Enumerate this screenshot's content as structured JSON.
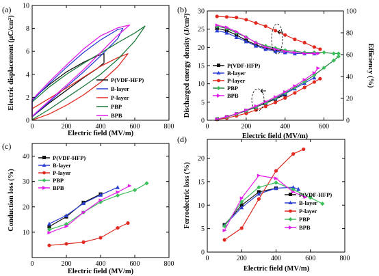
{
  "colors": {
    "P(VDF-HFP)": "#111111",
    "B-layer": "#2b3fd4",
    "P-layer": "#e02a1f",
    "PBP": "#1e7a3c",
    "BPB": "#e31ce8",
    "PBP_markers": "#3cbf5a"
  },
  "chart_data": [
    {
      "panel": "(a)",
      "type": "line",
      "xlabel": "Electric field (MV/m)",
      "ylabel": "Electric displacement (μC/cm²)",
      "xlim": [
        0,
        800
      ],
      "ylim": [
        0,
        10
      ],
      "xticks": [
        "0",
        "200",
        "400",
        "600",
        "800"
      ],
      "yticks": [
        "0",
        "2",
        "4",
        "6",
        "8",
        "10"
      ],
      "legend_position": "lower-right",
      "series": [
        {
          "name": "P(VDF-HFP)",
          "color": "#111111",
          "upper": [
            [
              0,
              1.8
            ],
            [
              100,
              3.1
            ],
            [
              200,
              4.2
            ],
            [
              300,
              5.05
            ],
            [
              380,
              5.6
            ],
            [
              420,
              5.8
            ]
          ],
          "lower": [
            [
              0,
              0.3
            ],
            [
              100,
              1.5
            ],
            [
              200,
              2.6
            ],
            [
              300,
              3.7
            ],
            [
              380,
              4.5
            ],
            [
              420,
              5.0
            ]
          ]
        },
        {
          "name": "B-layer",
          "color": "#2b3fd4",
          "upper": [
            [
              0,
              1.7
            ],
            [
              100,
              3.2
            ],
            [
              200,
              4.6
            ],
            [
              300,
              5.9
            ],
            [
              400,
              7.0
            ],
            [
              500,
              7.9
            ],
            [
              530,
              8.0
            ]
          ],
          "lower": [
            [
              0,
              0.3
            ],
            [
              100,
              1.6
            ],
            [
              200,
              2.9
            ],
            [
              300,
              4.2
            ],
            [
              400,
              5.6
            ],
            [
              500,
              7.1
            ],
            [
              530,
              8.0
            ]
          ]
        },
        {
          "name": "P-layer",
          "color": "#e02a1f",
          "upper": [
            [
              0,
              1.0
            ],
            [
              100,
              1.9
            ],
            [
              200,
              2.8
            ],
            [
              300,
              3.75
            ],
            [
              400,
              4.7
            ],
            [
              500,
              5.45
            ],
            [
              560,
              5.8
            ]
          ],
          "lower": [
            [
              0,
              0.0
            ],
            [
              100,
              0.55
            ],
            [
              200,
              1.3
            ],
            [
              300,
              2.2
            ],
            [
              400,
              3.3
            ],
            [
              500,
              4.65
            ],
            [
              560,
              5.8
            ]
          ]
        },
        {
          "name": "PBP",
          "color": "#1e7a3c",
          "upper": [
            [
              0,
              1.6
            ],
            [
              100,
              2.9
            ],
            [
              200,
              4.0
            ],
            [
              300,
              4.95
            ],
            [
              400,
              5.85
            ],
            [
              500,
              6.75
            ],
            [
              600,
              7.6
            ],
            [
              660,
              8.2
            ]
          ],
          "lower": [
            [
              0,
              0.05
            ],
            [
              100,
              0.95
            ],
            [
              200,
              1.95
            ],
            [
              300,
              2.95
            ],
            [
              400,
              4.0
            ],
            [
              500,
              5.3
            ],
            [
              600,
              6.9
            ],
            [
              660,
              8.2
            ]
          ]
        },
        {
          "name": "BPB",
          "color": "#e31ce8",
          "upper": [
            [
              0,
              1.8
            ],
            [
              100,
              3.35
            ],
            [
              200,
              4.8
            ],
            [
              300,
              6.2
            ],
            [
              400,
              7.35
            ],
            [
              500,
              8.05
            ],
            [
              570,
              8.3
            ]
          ],
          "lower": [
            [
              0,
              0.35
            ],
            [
              100,
              1.7
            ],
            [
              200,
              3.05
            ],
            [
              300,
              4.4
            ],
            [
              400,
              5.9
            ],
            [
              500,
              7.4
            ],
            [
              570,
              8.3
            ]
          ]
        }
      ]
    },
    {
      "panel": "(b)",
      "type": "line",
      "xlabel": "Electric field (MV/m)",
      "ylabel": "Discharged energy density (J/cm³)",
      "y2label": "Efficiency (%)",
      "xlim": [
        0,
        700
      ],
      "ylim": [
        0,
        30
      ],
      "y2lim": [
        0,
        100
      ],
      "xticks": [
        "0",
        "200",
        "400",
        "600"
      ],
      "yticks": [
        "0",
        "5",
        "10",
        "15",
        "20",
        "25",
        "30"
      ],
      "y2ticks": [
        "0",
        "20",
        "40",
        "60",
        "80",
        "100"
      ],
      "legend_position": "center-left",
      "series": [
        {
          "name": "P(VDF-HFP)",
          "color": "#111111",
          "energy": [
            [
              50,
              0.3
            ],
            [
              100,
              0.9
            ],
            [
              150,
              1.7
            ],
            [
              200,
              2.6
            ],
            [
              250,
              3.6
            ],
            [
              300,
              4.7
            ],
            [
              350,
              5.8
            ],
            [
              400,
              7.0
            ]
          ],
          "efficiency": [
            [
              50,
              84
            ],
            [
              100,
              82
            ],
            [
              150,
              78
            ],
            [
              200,
              73
            ],
            [
              250,
              69
            ],
            [
              300,
              66
            ],
            [
              350,
              64
            ],
            [
              400,
              63
            ]
          ]
        },
        {
          "name": "B-layer",
          "color": "#2b3fd4",
          "energy": [
            [
              50,
              0.3
            ],
            [
              100,
              0.9
            ],
            [
              150,
              1.7
            ],
            [
              200,
              2.6
            ],
            [
              250,
              3.6
            ],
            [
              300,
              4.8
            ],
            [
              350,
              6.0
            ],
            [
              400,
              7.3
            ],
            [
              450,
              8.7
            ],
            [
              500,
              10.2
            ],
            [
              550,
              11.7
            ]
          ],
          "efficiency": [
            [
              50,
              82
            ],
            [
              100,
              80
            ],
            [
              150,
              76
            ],
            [
              200,
              72
            ],
            [
              250,
              68
            ],
            [
              300,
              65
            ],
            [
              350,
              63
            ],
            [
              400,
              62
            ],
            [
              450,
              61
            ],
            [
              500,
              61
            ],
            [
              550,
              61
            ]
          ]
        },
        {
          "name": "P-layer",
          "color": "#e02a1f",
          "energy": [
            [
              50,
              0.2
            ],
            [
              100,
              0.6
            ],
            [
              150,
              1.2
            ],
            [
              200,
              1.9
            ],
            [
              250,
              2.8
            ],
            [
              300,
              3.8
            ],
            [
              350,
              4.9
            ],
            [
              400,
              6.1
            ],
            [
              450,
              7.5
            ],
            [
              500,
              9.0
            ],
            [
              550,
              10.5
            ],
            [
              580,
              11.4
            ]
          ],
          "efficiency": [
            [
              50,
              95
            ],
            [
              100,
              94.5
            ],
            [
              150,
              94
            ],
            [
              200,
              92
            ],
            [
              250,
              89
            ],
            [
              300,
              86
            ],
            [
              350,
              82
            ],
            [
              400,
              78
            ],
            [
              450,
              74
            ],
            [
              500,
              71
            ],
            [
              550,
              67
            ],
            [
              580,
              65
            ]
          ]
        },
        {
          "name": "PBP",
          "color": "#1e7a3c",
          "energy": [
            [
              50,
              0.3
            ],
            [
              100,
              0.9
            ],
            [
              150,
              1.7
            ],
            [
              200,
              2.6
            ],
            [
              250,
              3.6
            ],
            [
              300,
              4.8
            ],
            [
              350,
              6.1
            ],
            [
              400,
              7.5
            ],
            [
              450,
              9.0
            ],
            [
              500,
              10.6
            ],
            [
              550,
              12.4
            ],
            [
              600,
              14.4
            ],
            [
              650,
              16.4
            ],
            [
              675,
              17.5
            ]
          ],
          "efficiency": [
            [
              50,
              86
            ],
            [
              100,
              84
            ],
            [
              150,
              80
            ],
            [
              200,
              76
            ],
            [
              250,
              71
            ],
            [
              300,
              68
            ],
            [
              350,
              66
            ],
            [
              400,
              64
            ],
            [
              450,
              63
            ],
            [
              500,
              62
            ],
            [
              550,
              62
            ],
            [
              600,
              62
            ],
            [
              650,
              61
            ],
            [
              675,
              61
            ]
          ]
        },
        {
          "name": "BPB",
          "color": "#e31ce8",
          "energy": [
            [
              50,
              0.3
            ],
            [
              100,
              1.0
            ],
            [
              150,
              1.8
            ],
            [
              200,
              2.8
            ],
            [
              250,
              3.9
            ],
            [
              300,
              5.1
            ],
            [
              350,
              6.4
            ],
            [
              400,
              7.8
            ],
            [
              450,
              9.4
            ],
            [
              500,
              11.1
            ],
            [
              550,
              13.0
            ],
            [
              570,
              14.3
            ]
          ],
          "efficiency": [
            [
              50,
              87
            ],
            [
              100,
              85
            ],
            [
              150,
              81
            ],
            [
              200,
              76
            ],
            [
              250,
              71
            ],
            [
              300,
              67
            ],
            [
              350,
              65
            ],
            [
              400,
              63
            ],
            [
              450,
              62
            ],
            [
              500,
              61
            ],
            [
              550,
              61
            ],
            [
              570,
              61
            ]
          ]
        }
      ]
    },
    {
      "panel": "(c)",
      "type": "line",
      "xlabel": "Electric field (MV/m)",
      "ylabel": "Conduction loss (%)",
      "xlim": [
        0,
        800
      ],
      "ylim": [
        0,
        45
      ],
      "xticks": [
        "0",
        "200",
        "400",
        "600",
        "800"
      ],
      "yticks": [
        "10",
        "20",
        "30",
        "40"
      ],
      "legend_position": "top-left",
      "series": [
        {
          "name": "P(VDF-HFP)",
          "color": "#111111",
          "x": [
            100,
            200,
            300,
            400
          ],
          "y": [
            12.2,
            16.1,
            21.7,
            25.0
          ]
        },
        {
          "name": "B-layer",
          "color": "#2b3fd4",
          "x": [
            100,
            200,
            300,
            400,
            500
          ],
          "y": [
            13.3,
            16.6,
            21.4,
            24.7,
            27.7
          ]
        },
        {
          "name": "P-layer",
          "color": "#e02a1f",
          "x": [
            100,
            200,
            300,
            400,
            500,
            560
          ],
          "y": [
            4.8,
            5.4,
            6.1,
            7.8,
            11.7,
            13.6
          ]
        },
        {
          "name": "PBP",
          "color": "#3cbf5a",
          "x": [
            100,
            200,
            300,
            400,
            500,
            600,
            670
          ],
          "y": [
            11.0,
            13.2,
            17.8,
            21.9,
            24.5,
            26.6,
            29.3
          ]
        },
        {
          "name": "BPB",
          "color": "#e31ce8",
          "x": [
            100,
            200,
            300,
            400,
            500,
            570
          ],
          "y": [
            9.8,
            12.3,
            17.8,
            22.6,
            25.8,
            28.3
          ]
        }
      ]
    },
    {
      "panel": "(d)",
      "type": "line",
      "xlabel": "Electric field (MV/m)",
      "ylabel": "Ferroelectric loss (%)",
      "xlim": [
        0,
        800
      ],
      "ylim": [
        0,
        24
      ],
      "xticks": [
        "0",
        "200",
        "400",
        "600",
        "800"
      ],
      "yticks": [
        "0",
        "5",
        "10",
        "15",
        "20"
      ],
      "legend_position": "lower-right",
      "series": [
        {
          "name": "P(VDF-HFP)",
          "color": "#111111",
          "x": [
            100,
            200,
            300,
            400
          ],
          "y": [
            5.8,
            10.0,
            12.8,
            13.6
          ]
        },
        {
          "name": "B-layer",
          "color": "#2b3fd4",
          "x": [
            100,
            200,
            300,
            400,
            500,
            530
          ],
          "y": [
            5.7,
            9.5,
            12.4,
            13.6,
            13.8,
            13.4
          ]
        },
        {
          "name": "P-layer",
          "color": "#e02a1f",
          "x": [
            100,
            200,
            300,
            400,
            500,
            560
          ],
          "y": [
            2.6,
            5.1,
            11.3,
            17.3,
            20.9,
            21.9
          ]
        },
        {
          "name": "PBP",
          "color": "#3cbf5a",
          "x": [
            100,
            200,
            300,
            400,
            500,
            600,
            670
          ],
          "y": [
            5.5,
            10.7,
            13.8,
            14.8,
            13.3,
            11.6,
            10.3
          ]
        },
        {
          "name": "BPB",
          "color": "#e31ce8",
          "x": [
            100,
            200,
            300,
            400,
            500,
            570
          ],
          "y": [
            4.6,
            11.5,
            16.3,
            15.7,
            12.8,
            11.7
          ]
        }
      ]
    }
  ]
}
